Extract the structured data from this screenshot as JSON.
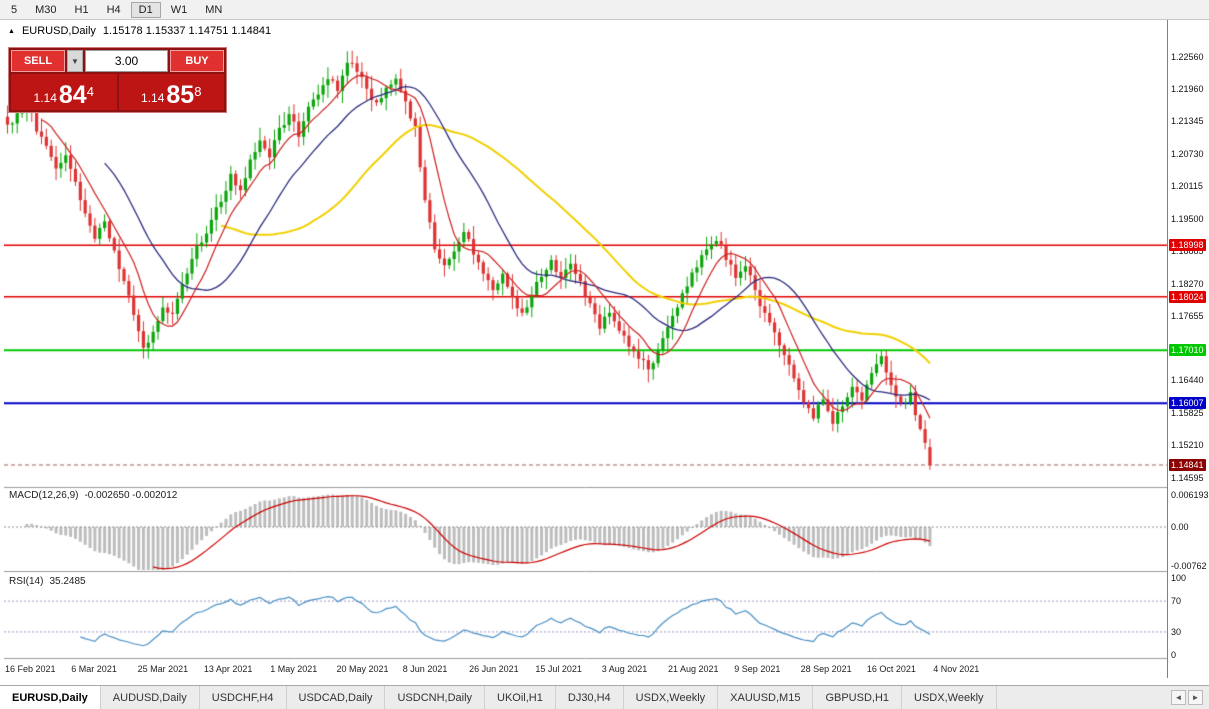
{
  "toolbar": {
    "periods": [
      "5",
      "M30",
      "H1",
      "H4",
      "D1",
      "W1",
      "MN"
    ],
    "active": "D1"
  },
  "chart": {
    "title": "EURUSD,Daily",
    "ohlc_text": "1.15178 1.15337 1.14751 1.14841"
  },
  "icons": {
    "collapse": "▲",
    "dropdown": "▼",
    "tab_prev": "◄",
    "tab_next": "►"
  },
  "trade_panel": {
    "sell_label": "SELL",
    "buy_label": "BUY",
    "volume": "3.00",
    "sell_price": {
      "base": "1.14",
      "big": "84",
      "sup": "4"
    },
    "buy_price": {
      "base": "1.14",
      "big": "85",
      "sup": "8"
    }
  },
  "price_axis": {
    "ticks": [
      "1.22560",
      "1.21960",
      "1.21345",
      "1.20730",
      "1.20115",
      "1.19500",
      "1.18885",
      "1.18270",
      "1.17655",
      "1.16440",
      "1.15825",
      "1.15210",
      "1.14595"
    ],
    "levels": [
      {
        "label": "1.18998",
        "price": 1.18998,
        "color": "#e00000",
        "lw": 1.5
      },
      {
        "label": "1.18024",
        "price": 1.18024,
        "color": "#e00000",
        "lw": 1.5
      },
      {
        "label": "1.17010",
        "price": 1.1701,
        "color": "#00c800",
        "lw": 2
      },
      {
        "label": "1.16007",
        "price": 1.16007,
        "color": "#0000c8",
        "lw": 2
      }
    ],
    "current": {
      "label": "1.14841",
      "price": 1.14841,
      "color": "#8b0000"
    }
  },
  "macd": {
    "label": "MACD(12,26,9)",
    "values_text": "-0.002650 -0.002012",
    "axis_labels": [
      "0.006193",
      "0.00",
      "-0.00762"
    ],
    "axis_values": [
      0.006193,
      0,
      -0.00762
    ]
  },
  "rsi": {
    "label": "RSI(14)",
    "value_text": "35.2485",
    "axis_labels": [
      "100",
      "70",
      "30",
      "0"
    ],
    "axis_values": [
      100,
      70,
      30,
      0
    ],
    "levels": [
      70,
      30
    ]
  },
  "dates": [
    "16 Feb 2021",
    "6 Mar 2021",
    "25 Mar 2021",
    "13 Apr 2021",
    "1 May 2021",
    "20 May 2021",
    "8 Jun 2021",
    "26 Jun 2021",
    "15 Jul 2021",
    "3 Aug 2021",
    "21 Aug 2021",
    "9 Sep 2021",
    "28 Sep 2021",
    "16 Oct 2021",
    "4 Nov 2021"
  ],
  "tabs": {
    "items": [
      "EURUSD,Daily",
      "AUDUSD,Daily",
      "USDCHF,H4",
      "USDCAD,Daily",
      "USDCNH,Daily",
      "UKOil,H1",
      "DJ30,H4",
      "USDX,Weekly",
      "XAUUSD,M15",
      "GBPUSD,H1",
      "USDX,Weekly"
    ],
    "active_index": 0
  },
  "colors": {
    "up": "#0ca50c",
    "down": "#dd3333",
    "ma_fast": "#cc2222",
    "ma_mid": "#2b2b80",
    "ma_slow": "#f0d000",
    "macd_hist": "#bdbdbd",
    "macd_signal": "#cc0000",
    "rsi_line": "#4a90c4",
    "separator": "#9a9a9a"
  },
  "chart_data": {
    "type": "candlestick",
    "symbol": "EURUSD",
    "timeframe": "Daily",
    "last_ohlc": {
      "open": 1.15178,
      "high": 1.15337,
      "low": 1.14751,
      "close": 1.14841
    },
    "x_labels": [
      "16 Feb 2021",
      "6 Mar 2021",
      "25 Mar 2021",
      "13 Apr 2021",
      "1 May 2021",
      "20 May 2021",
      "8 Jun 2021",
      "26 Jun 2021",
      "15 Jul 2021",
      "3 Aug 2021",
      "21 Aug 2021",
      "9 Sep 2021",
      "28 Sep 2021",
      "16 Oct 2021",
      "4 Nov 2021"
    ],
    "y_range": [
      1.14425,
      1.23109
    ],
    "horizontal_levels": [
      1.18998,
      1.18024,
      1.1701,
      1.16007
    ],
    "close_samples": [
      1.2128,
      1.215,
      1.2168,
      1.2115,
      1.2088,
      1.2045,
      1.207,
      1.202,
      1.196,
      1.1912,
      1.1945,
      1.189,
      1.1832,
      1.1768,
      1.1706,
      1.1736,
      1.1782,
      1.177,
      1.1826,
      1.1874,
      1.1905,
      1.1948,
      1.1982,
      1.2035,
      1.2004,
      1.2062,
      1.2098,
      1.2066,
      1.2122,
      1.2148,
      1.2105,
      1.2162,
      1.2185,
      1.2214,
      1.2192,
      1.2245,
      1.2228,
      1.2196,
      1.217,
      1.2198,
      1.2215,
      1.2172,
      1.2125,
      1.1985,
      1.1892,
      1.1862,
      1.1888,
      1.1925,
      1.1882,
      1.1846,
      1.1815,
      1.1846,
      1.1802,
      1.1772,
      1.1806,
      1.184,
      1.1872,
      1.1838,
      1.1865,
      1.1832,
      1.179,
      1.1742,
      1.1772,
      1.1738,
      1.1708,
      1.1685,
      1.1665,
      1.1702,
      1.1745,
      1.1782,
      1.1822,
      1.1858,
      1.1892,
      1.1908,
      1.1872,
      1.1838,
      1.186,
      1.1815,
      1.1772,
      1.1735,
      1.1692,
      1.1648,
      1.1602,
      1.1572,
      1.1608,
      1.1562,
      1.1595,
      1.1632,
      1.1606,
      1.1658,
      1.169,
      1.1635,
      1.1602,
      1.1622,
      1.1552,
      1.14841
    ],
    "indicators": [
      {
        "name": "MACD",
        "params": [
          12,
          26,
          9
        ],
        "current": [
          -0.00265,
          -0.002012
        ],
        "y_range": [
          -0.00762,
          0.006193
        ]
      },
      {
        "name": "RSI",
        "params": [
          14
        ],
        "current": 35.2485,
        "y_range": [
          0,
          100
        ],
        "levels": [
          30,
          70
        ]
      }
    ],
    "moving_averages": [
      {
        "period": 8,
        "color": "#cc2222"
      },
      {
        "period": 21,
        "color": "#2b2b80"
      },
      {
        "period": 45,
        "color": "#f0d000"
      }
    ]
  }
}
